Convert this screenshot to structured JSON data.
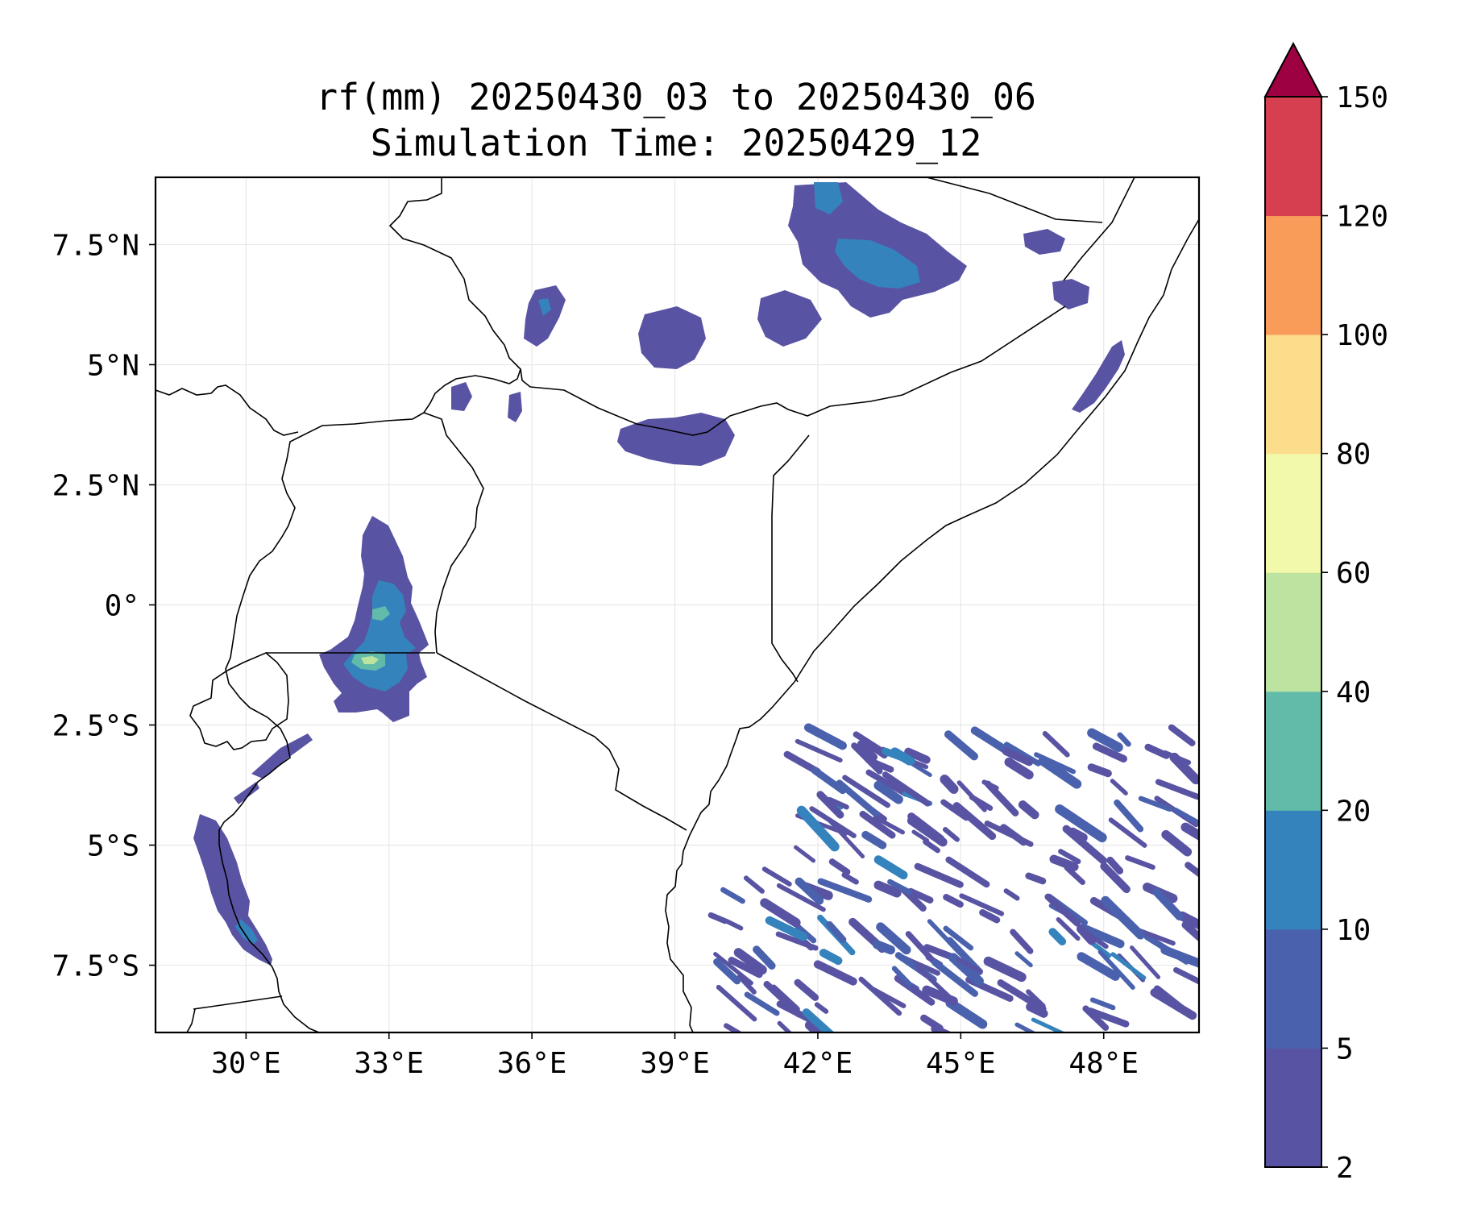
{
  "title": {
    "line1": "rf(mm) 20250430_03 to 20250430_06",
    "line2": "Simulation Time: 20250429_12"
  },
  "map": {
    "lon_range": [
      28.1,
      50.0
    ],
    "lat_range": [
      -8.9,
      8.9
    ],
    "x_ticks": [
      {
        "value": 30,
        "label": "30°E"
      },
      {
        "value": 33,
        "label": "33°E"
      },
      {
        "value": 36,
        "label": "36°E"
      },
      {
        "value": 39,
        "label": "39°E"
      },
      {
        "value": 42,
        "label": "42°E"
      },
      {
        "value": 45,
        "label": "45°E"
      },
      {
        "value": 48,
        "label": "48°E"
      }
    ],
    "y_ticks": [
      {
        "value": 7.5,
        "label": "7.5°N"
      },
      {
        "value": 5,
        "label": "5°N"
      },
      {
        "value": 2.5,
        "label": "2.5°N"
      },
      {
        "value": 0,
        "label": "0°"
      },
      {
        "value": -2.5,
        "label": "2.5°S"
      },
      {
        "value": -5,
        "label": "5°S"
      },
      {
        "value": -7.5,
        "label": "7.5°S"
      }
    ],
    "grid": true,
    "coastline_color": "#000000",
    "gridline_color": "#e8e8e8"
  },
  "colorbar": {
    "levels": [
      {
        "label": "2",
        "color": "#5953a3"
      },
      {
        "label": "5",
        "color": "#4a62ad"
      },
      {
        "label": "10",
        "color": "#3583bd"
      },
      {
        "label": "20",
        "color": "#62bba9"
      },
      {
        "label": "40",
        "color": "#bde3a0"
      },
      {
        "label": "60",
        "color": "#f3f9aa"
      },
      {
        "label": "80",
        "color": "#fbdd8c"
      },
      {
        "label": "100",
        "color": "#f99b59"
      },
      {
        "label": "120",
        "color": "#d63f4f"
      },
      {
        "label": "150",
        "color": null
      }
    ],
    "extend_color": "#9e0142",
    "extend": "max"
  }
}
